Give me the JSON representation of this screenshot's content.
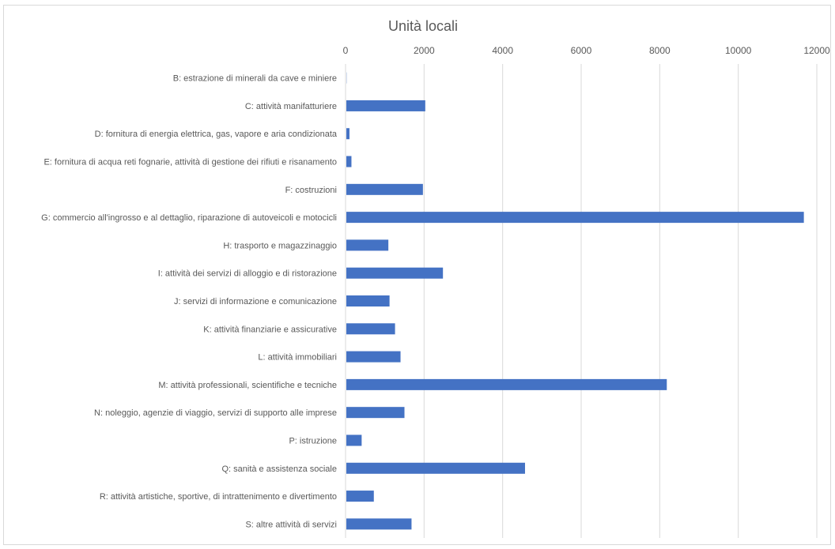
{
  "chart_data": {
    "type": "bar",
    "orientation": "horizontal",
    "title": "Unità locali",
    "xlabel": "",
    "ylabel": "",
    "xlim": [
      0,
      12000
    ],
    "x_ticks": [
      0,
      2000,
      4000,
      6000,
      8000,
      10000,
      12000
    ],
    "axis_position": "top",
    "grid": true,
    "legend": "none",
    "bar_color": "#4472C4",
    "categories": [
      "B: estrazione di minerali da cave e miniere",
      "C: attività manifatturiere",
      "D: fornitura di energia elettrica, gas, vapore e aria condizionata",
      "E: fornitura di acqua reti fognarie, attività di gestione dei rifiuti e risanamento",
      "F: costruzioni",
      "G: commercio all'ingrosso e al dettaglio, riparazione di autoveicoli e motocicli",
      "H: trasporto e magazzinaggio",
      "I: attività dei servizi di alloggio e di ristorazione",
      "J: servizi di informazione e comunicazione",
      "K: attività finanziarie e assicurative",
      "L: attività immobiliari",
      "M: attività professionali, scientifiche e tecniche",
      "N: noleggio, agenzie di viaggio, servizi di supporto alle imprese",
      "P: istruzione",
      "Q: sanità e assistenza sociale",
      "R: attività artistiche, sportive, di intrattenimento e divertimento",
      "S: altre attività di servizi"
    ],
    "values": [
      5,
      2010,
      80,
      130,
      1950,
      11650,
      1070,
      2460,
      1100,
      1240,
      1380,
      8160,
      1480,
      390,
      4550,
      700,
      1660
    ]
  }
}
